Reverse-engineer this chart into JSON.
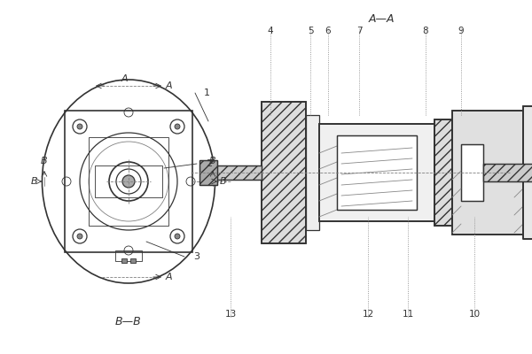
{
  "bg_color": "#ffffff",
  "line_color": "#333333",
  "hatch_color": "#555555",
  "title_aa": "A—A",
  "title_bb": "B—B",
  "labels": {
    "1": [
      1,
      "1"
    ],
    "2": [
      2,
      "2"
    ],
    "3": [
      3,
      "3"
    ],
    "4": [
      4,
      "4"
    ],
    "5": [
      5,
      "5"
    ],
    "6": [
      6,
      "6"
    ],
    "7": [
      7,
      "7"
    ],
    "8": [
      8,
      "8"
    ],
    "9": [
      9,
      "9"
    ],
    "10": [
      10,
      "10"
    ],
    "11": [
      11,
      "11"
    ],
    "12": [
      12,
      "12"
    ],
    "13": [
      13,
      "13"
    ]
  },
  "figsize": [
    6.0,
    4.0
  ],
  "dpi": 100
}
